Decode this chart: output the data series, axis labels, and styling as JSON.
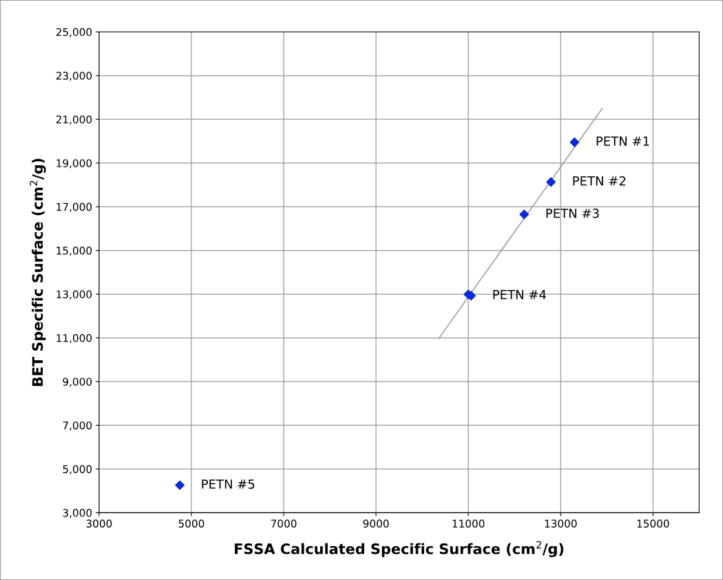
{
  "chart_data": {
    "type": "scatter",
    "xlabel": "FSSA Calculated Specific Surface (cm$^{2}$/g)",
    "ylabel": "BET Specific Surface (cm$^{2}$/g)",
    "series": [
      {
        "marker": "diamond",
        "color": "#0a2bd6",
        "x": [
          13300,
          12790,
          12210,
          11000,
          11060,
          4750
        ],
        "values": [
          19950,
          18130,
          16650,
          12990,
          12930,
          4260
        ]
      },
      {
        "type": "line",
        "color": "#a0a0a0",
        "x": [
          10360,
          13900
        ],
        "values": [
          10970,
          21500
        ]
      }
    ],
    "annotations": [
      {
        "text": "PETN #1",
        "x": 13300,
        "y": 19950
      },
      {
        "text": "PETN #2",
        "x": 12790,
        "y": 18130
      },
      {
        "text": "PETN #3",
        "x": 12210,
        "y": 16650
      },
      {
        "text": "PETN #4",
        "x": 11060,
        "y": 12930
      },
      {
        "text": "PETN #5",
        "x": 4750,
        "y": 4260
      }
    ],
    "xlim": [
      3000,
      16000
    ],
    "xticks": [
      3000,
      5000,
      7000,
      9000,
      11000,
      13000,
      15000
    ],
    "ylim": [
      3000,
      25000
    ],
    "yticks": [
      {
        "value": 3000,
        "label": "3,000"
      },
      {
        "value": 5000,
        "label": "5,000"
      },
      {
        "value": 7000,
        "label": "7,000"
      },
      {
        "value": 9000,
        "label": "9,000"
      },
      {
        "value": 11000,
        "label": "11,000"
      },
      {
        "value": 13000,
        "label": "13,000"
      },
      {
        "value": 15000,
        "label": "15,000"
      },
      {
        "value": 17000,
        "label": "17,000"
      },
      {
        "value": 19000,
        "label": "19,000"
      },
      {
        "value": 21000,
        "label": "21,000"
      },
      {
        "value": 23000,
        "label": "23,000"
      },
      {
        "value": 25000,
        "label": "25,000"
      }
    ],
    "grid": true,
    "legend": false
  }
}
